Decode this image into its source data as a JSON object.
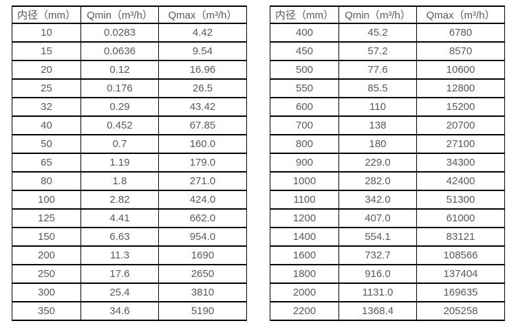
{
  "colors": {
    "border": "#000000",
    "text": "#595959",
    "background": "#ffffff"
  },
  "chart_data": [
    {
      "type": "table",
      "name": "flow-spec-table-small-diameters",
      "headers": [
        "内径（mm）",
        "Qmin（m³/h）",
        "Qmax（m³/h）"
      ],
      "rows": [
        [
          "10",
          "0.0283",
          "4.42"
        ],
        [
          "15",
          "0.0636",
          "9.54"
        ],
        [
          "20",
          "0.12",
          "16.96"
        ],
        [
          "25",
          "0.176",
          "26.5"
        ],
        [
          "32",
          "0.29",
          "43.42"
        ],
        [
          "40",
          "0.452",
          "67.85"
        ],
        [
          "50",
          "0.7",
          "160.0"
        ],
        [
          "65",
          "1.19",
          "179.0"
        ],
        [
          "80",
          "1.8",
          "271.0"
        ],
        [
          "100",
          "2.82",
          "424.0"
        ],
        [
          "125",
          "4.41",
          "662.0"
        ],
        [
          "150",
          "6.63",
          "954.0"
        ],
        [
          "200",
          "11.3",
          "1690"
        ],
        [
          "250",
          "17.6",
          "2650"
        ],
        [
          "300",
          "25.4",
          "3810"
        ],
        [
          "350",
          "34.6",
          "5190"
        ]
      ]
    },
    {
      "type": "table",
      "name": "flow-spec-table-large-diameters",
      "headers": [
        "内径（mm）",
        "Qmin（m³/h）",
        "Qmax（m³/h）"
      ],
      "rows": [
        [
          "400",
          "45.2",
          "6780"
        ],
        [
          "450",
          "57.2",
          "8570"
        ],
        [
          "500",
          "77.6",
          "10600"
        ],
        [
          "550",
          "85.5",
          "12800"
        ],
        [
          "600",
          "110",
          "15200"
        ],
        [
          "700",
          "138",
          "20700"
        ],
        [
          "800",
          "180",
          "27100"
        ],
        [
          "900",
          "229.0",
          "34300"
        ],
        [
          "1000",
          "282.0",
          "42400"
        ],
        [
          "1100",
          "342.0",
          "51300"
        ],
        [
          "1200",
          "407.0",
          "61000"
        ],
        [
          "1400",
          "554.1",
          "83121"
        ],
        [
          "1600",
          "732.7",
          "108566"
        ],
        [
          "1800",
          "916.0",
          "137404"
        ],
        [
          "2000",
          "1131.0",
          "169635"
        ],
        [
          "2200",
          "1368.4",
          "205258"
        ]
      ]
    }
  ]
}
